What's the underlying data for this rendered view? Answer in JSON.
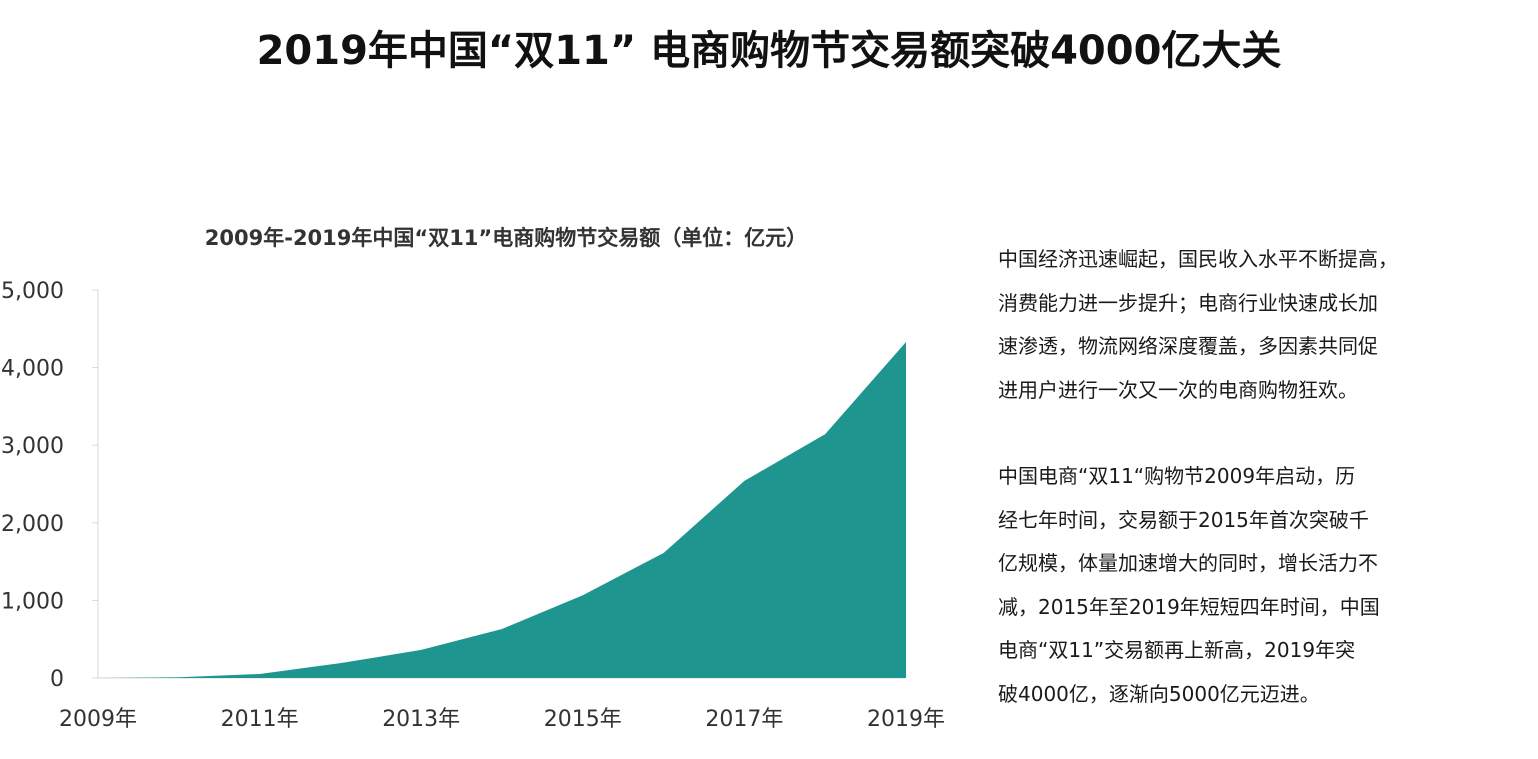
{
  "title": "2019年中国“双11” 电商购物节交易额突破4000亿大关",
  "paragraphs": [
    "中国经济迅速崛起，国民收入水平不断提高，\n消费能力进一步提升；电商行业快速成长加\n速渗透，物流网络深度覆盖，多因素共同促\n进用户进行一次又一次的电商购物狂欢。",
    "中国电商“双11“购物节2009年启动，历\n经七年时间，交易额于2015年首次突破千\n亿规模，体量加速增大的同时，增长活力不\n减，2015年至2019年短短四年时间，中国\n电商“双11”交易额再上新高，2019年突\n破4000亿，逐渐向5000亿元迈进。"
  ],
  "chart_data": {
    "type": "area",
    "title": "2009年-2019年中国“双11”电商购物节交易额（单位：亿元）",
    "x": [
      2009,
      2010,
      2011,
      2012,
      2013,
      2014,
      2015,
      2016,
      2017,
      2018,
      2019
    ],
    "x_tick_labels": [
      "2009年",
      "2011年",
      "2013年",
      "2015年",
      "2017年",
      "2019年"
    ],
    "y_tick_labels": [
      "0",
      "1,000",
      "2,000",
      "3,000",
      "4,000",
      "5,000"
    ],
    "series": [
      {
        "values": [
          0.5,
          9.4,
          52,
          191,
          362,
          632,
          1067,
          1611,
          2540,
          3143,
          4330
        ]
      }
    ],
    "ylim": [
      0,
      5000
    ],
    "grid": false,
    "legend": "none",
    "colors": {
      "area": "#1f9590",
      "axis": "#d9d9d9",
      "text": "#333333"
    }
  }
}
